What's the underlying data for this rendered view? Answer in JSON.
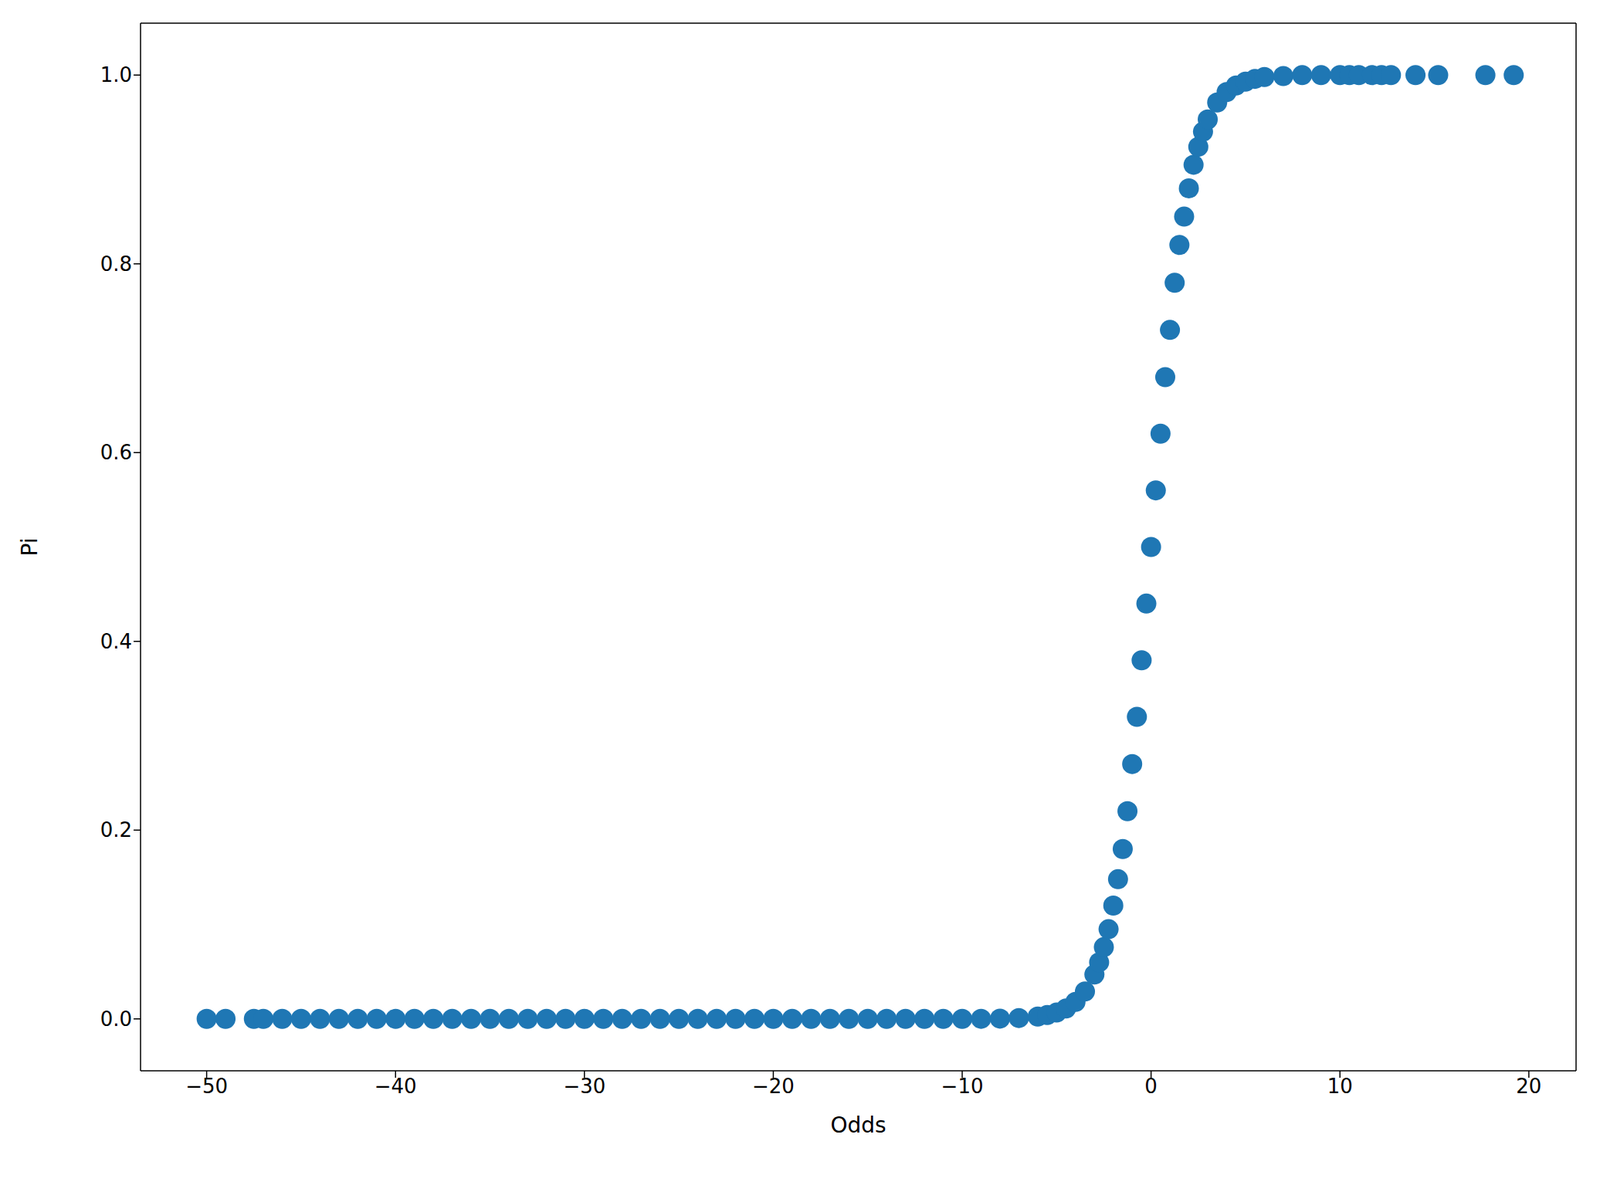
{
  "chart_data": {
    "type": "scatter",
    "x_label": "Odds",
    "y_label": "Pi",
    "color": "#1f77b4",
    "marker": "circle",
    "grid": false,
    "x": [
      -50,
      -49,
      -47.5,
      -47,
      -46,
      -45,
      -44,
      -43,
      -42,
      -41,
      -40,
      -39,
      -38,
      -37,
      -36,
      -35,
      -34,
      -33,
      -32,
      -31,
      -30,
      -29,
      -28,
      -27,
      -26,
      -25,
      -24,
      -23,
      -22,
      -21,
      -20,
      -19,
      -18,
      -17,
      -16,
      -15,
      -14,
      -13,
      -12,
      -11,
      -10,
      -9,
      -8,
      -7,
      -6,
      -5.5,
      -5,
      -4.5,
      -4,
      -3.5,
      -3,
      -2.75,
      -2.5,
      -2.25,
      -2,
      -1.75,
      -1.5,
      -1.25,
      -1,
      -0.75,
      -0.5,
      -0.25,
      0,
      0.25,
      0.5,
      0.75,
      1,
      1.25,
      1.5,
      1.75,
      2,
      2.25,
      2.5,
      2.75,
      3,
      3.5,
      4,
      4.5,
      5,
      5.5,
      6,
      7,
      8,
      9,
      10,
      10.5,
      11,
      11.7,
      12.2,
      12.7,
      14,
      15.2,
      17.7,
      19.2
    ],
    "values": [
      0,
      0,
      0,
      0,
      0,
      0,
      0,
      0,
      0,
      0,
      0,
      0,
      0,
      0,
      0,
      0,
      0,
      0,
      0,
      0,
      0,
      0,
      0,
      0,
      0,
      0,
      0,
      0,
      0,
      0,
      0,
      0,
      0,
      0,
      0,
      0,
      0,
      0,
      0,
      0,
      0,
      0.0001,
      0.0003,
      0.0009,
      0.0025,
      0.004,
      0.0067,
      0.011,
      0.018,
      0.029,
      0.047,
      0.06,
      0.076,
      0.095,
      0.12,
      0.148,
      0.18,
      0.22,
      0.27,
      0.32,
      0.38,
      0.44,
      0.5,
      0.56,
      0.62,
      0.68,
      0.73,
      0.78,
      0.82,
      0.85,
      0.88,
      0.905,
      0.924,
      0.94,
      0.953,
      0.971,
      0.982,
      0.989,
      0.993,
      0.996,
      0.998,
      0.999,
      1,
      1,
      1,
      1,
      1,
      1,
      1,
      1,
      1,
      1,
      1,
      1
    ],
    "xlim": [
      -53.5,
      22.5
    ],
    "xticks": [
      -50,
      -40,
      -30,
      -20,
      -10,
      0,
      10,
      20
    ],
    "ylim": [
      -0.055,
      1.055
    ],
    "yticks": [
      {
        "value": 0,
        "label": "0.0"
      },
      0.2,
      0.4,
      0.6,
      0.8,
      {
        "value": 1,
        "label": "1.0"
      }
    ]
  }
}
